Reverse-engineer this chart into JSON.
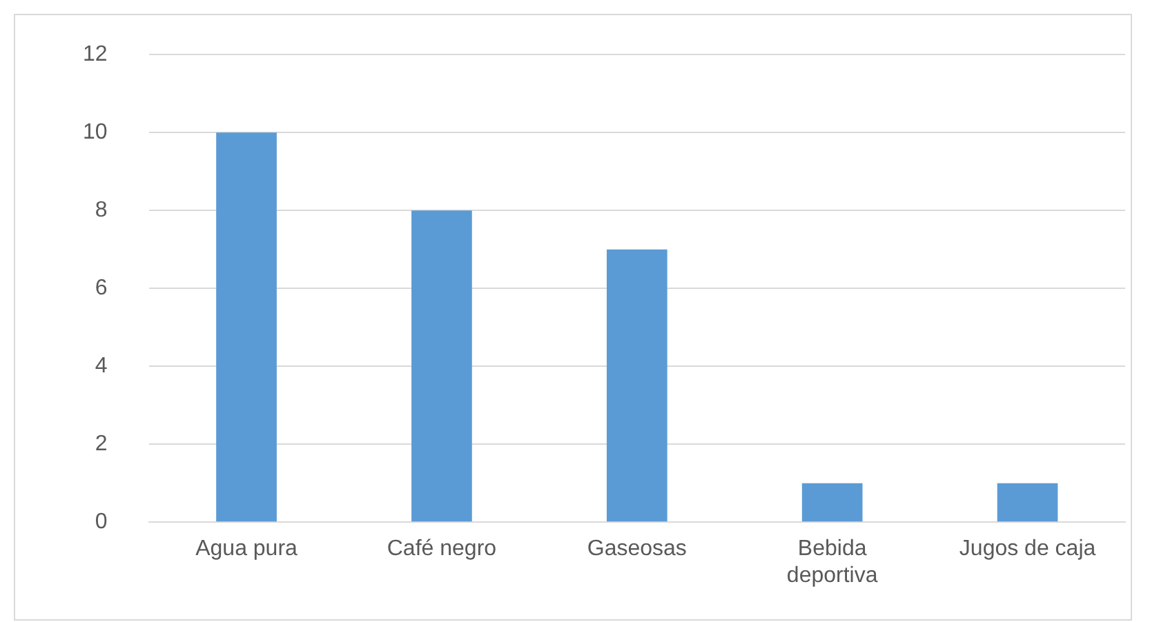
{
  "chart_data": {
    "type": "bar",
    "categories": [
      "Agua pura",
      "Café negro",
      "Gaseosas",
      "Bebida deportiva",
      "Jugos de caja"
    ],
    "values": [
      10,
      8,
      7,
      1,
      1
    ],
    "color": "#5b9bd5",
    "ylim": [
      0,
      12
    ],
    "yticks": [
      0,
      2,
      4,
      6,
      8,
      10,
      12
    ],
    "grid": "y",
    "legend": false
  }
}
